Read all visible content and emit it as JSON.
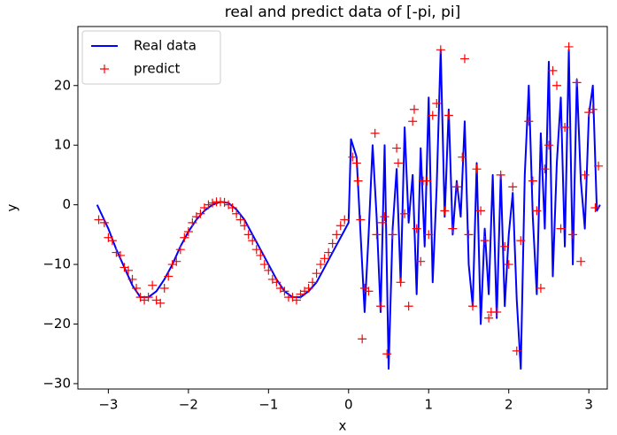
{
  "chart_data": {
    "type": "line",
    "title": "real and predict data of [-pi, pi]",
    "x_label": "x",
    "y_label": "y",
    "xlim": [
      -3.38,
      3.23
    ],
    "ylim": [
      -30.9,
      29.9
    ],
    "xticks": [
      {
        "value": -3,
        "label": "−3"
      },
      {
        "value": -2,
        "label": "−2"
      },
      {
        "value": -1,
        "label": "−1"
      },
      0,
      1,
      2,
      3
    ],
    "yticks": [
      {
        "value": -30,
        "label": "−30"
      },
      {
        "value": -20,
        "label": "−20"
      },
      {
        "value": -10,
        "label": "−10"
      },
      0,
      10,
      20
    ],
    "legend": "upper left",
    "series": [
      {
        "name": "Real data",
        "color": "#0000ff",
        "marker": "-",
        "x": [
          -3.14,
          -3.0,
          -2.9,
          -2.8,
          -2.7,
          -2.6,
          -2.5,
          -2.4,
          -2.3,
          -2.2,
          -2.1,
          -2.0,
          -1.9,
          -1.8,
          -1.7,
          -1.6,
          -1.5,
          -1.4,
          -1.3,
          -1.2,
          -1.1,
          -1.0,
          -0.9,
          -0.8,
          -0.7,
          -0.6,
          -0.5,
          -0.4,
          -0.3,
          -0.2,
          -0.1,
          0.0,
          0.03,
          0.1,
          0.15,
          0.2,
          0.25,
          0.3,
          0.35,
          0.4,
          0.45,
          0.5,
          0.55,
          0.6,
          0.65,
          0.7,
          0.75,
          0.8,
          0.85,
          0.9,
          0.95,
          1.0,
          1.05,
          1.1,
          1.15,
          1.2,
          1.25,
          1.3,
          1.35,
          1.4,
          1.45,
          1.5,
          1.55,
          1.6,
          1.65,
          1.7,
          1.75,
          1.8,
          1.85,
          1.9,
          1.95,
          2.0,
          2.05,
          2.1,
          2.15,
          2.2,
          2.25,
          2.3,
          2.35,
          2.4,
          2.45,
          2.5,
          2.55,
          2.6,
          2.65,
          2.7,
          2.75,
          2.8,
          2.85,
          2.9,
          2.95,
          3.0,
          3.05,
          3.1,
          3.14
        ],
        "values": [
          0,
          -4,
          -7.5,
          -10.5,
          -13.5,
          -15.5,
          -15.5,
          -14.5,
          -12.5,
          -10,
          -7,
          -4.5,
          -2.5,
          -1,
          0,
          0.5,
          0.3,
          -0.8,
          -2.5,
          -5,
          -7.5,
          -10,
          -12.5,
          -14.5,
          -15.5,
          -15.5,
          -14.5,
          -13,
          -10.5,
          -8,
          -5.5,
          -3,
          11,
          8,
          -5,
          -18,
          -5,
          10,
          -2,
          -18,
          10,
          -27.5,
          -4,
          6,
          -13,
          13,
          -3,
          5,
          -15,
          9.5,
          -7,
          18,
          -13,
          3,
          26,
          -2,
          16,
          -5,
          4,
          -2,
          14,
          -10,
          -17,
          7,
          -20,
          -4,
          -15,
          5,
          -19,
          5,
          -17,
          -5,
          2,
          -16,
          -27.5,
          5,
          20,
          -2,
          -15,
          12,
          -4,
          24,
          -12,
          7,
          18,
          -7,
          26,
          -10,
          21,
          4,
          -4,
          15,
          20,
          -1,
          0
        ]
      },
      {
        "name": "predict",
        "color": "#ff0000",
        "marker": "+",
        "x": [
          -3.12,
          -3.05,
          -3.0,
          -2.95,
          -2.9,
          -2.85,
          -2.8,
          -2.75,
          -2.7,
          -2.65,
          -2.6,
          -2.55,
          -2.5,
          -2.45,
          -2.4,
          -2.35,
          -2.3,
          -2.25,
          -2.2,
          -2.15,
          -2.1,
          -2.05,
          -2.0,
          -1.95,
          -1.9,
          -1.85,
          -1.8,
          -1.75,
          -1.7,
          -1.65,
          -1.6,
          -1.55,
          -1.5,
          -1.45,
          -1.4,
          -1.35,
          -1.3,
          -1.25,
          -1.2,
          -1.15,
          -1.1,
          -1.05,
          -1.0,
          -0.95,
          -0.9,
          -0.85,
          -0.8,
          -0.75,
          -0.7,
          -0.65,
          -0.6,
          -0.55,
          -0.5,
          -0.45,
          -0.4,
          -0.35,
          -0.3,
          -0.25,
          -0.2,
          -0.15,
          -0.1,
          -0.05,
          0.05,
          0.1,
          0.12,
          0.15,
          0.17,
          0.2,
          0.25,
          0.33,
          0.35,
          0.4,
          0.42,
          0.45,
          0.48,
          0.55,
          0.6,
          0.62,
          0.65,
          0.7,
          0.75,
          0.8,
          0.82,
          0.85,
          0.9,
          0.93,
          0.98,
          1.0,
          1.05,
          1.1,
          1.15,
          1.2,
          1.25,
          1.3,
          1.35,
          1.42,
          1.45,
          1.5,
          1.55,
          1.6,
          1.65,
          1.7,
          1.75,
          1.78,
          1.85,
          1.9,
          1.95,
          2.0,
          2.05,
          2.1,
          2.15,
          2.25,
          2.3,
          2.35,
          2.4,
          2.45,
          2.5,
          2.55,
          2.6,
          2.65,
          2.7,
          2.75,
          2.8,
          2.85,
          2.9,
          2.95,
          3.0,
          3.05,
          3.08,
          3.12
        ],
        "values": [
          -2.5,
          -3,
          -5.5,
          -6,
          -8,
          -8.5,
          -10.5,
          -11,
          -12.5,
          -14,
          -15.5,
          -16,
          -15.5,
          -13.5,
          -16,
          -16.5,
          -14,
          -12,
          -10,
          -9.5,
          -7.5,
          -5.5,
          -4.5,
          -3,
          -2,
          -1.5,
          -0.5,
          0,
          0.3,
          0.5,
          0.5,
          0.4,
          0,
          -0.5,
          -1.5,
          -2.5,
          -3.5,
          -5,
          -6,
          -7.5,
          -8.5,
          -10,
          -11,
          -12.5,
          -13,
          -14,
          -14.5,
          -15.5,
          -15.5,
          -16,
          -15,
          -14.5,
          -14,
          -13,
          -11.5,
          -10,
          -9,
          -8,
          -6.5,
          -5,
          -3.5,
          -2.5,
          8,
          7,
          4,
          -2.5,
          -22.5,
          -14,
          -14.5,
          12,
          -5,
          -17,
          -3,
          -2,
          -25,
          -5,
          9.5,
          7,
          -13,
          -1.5,
          -17,
          14,
          16,
          -4,
          -9.5,
          4,
          4,
          -5,
          15,
          17,
          26,
          -1,
          15,
          -4,
          3,
          8,
          24.5,
          -5,
          -17,
          6,
          -1,
          -6,
          -19,
          -18,
          -18,
          5,
          -7,
          -10,
          3,
          -24.5,
          -6,
          14,
          4,
          -1,
          -14,
          6,
          10,
          22.5,
          20,
          -4,
          13,
          26.5,
          -5,
          20.5,
          -9.5,
          5,
          15.5,
          16,
          -0.5,
          6.5
        ]
      }
    ]
  }
}
